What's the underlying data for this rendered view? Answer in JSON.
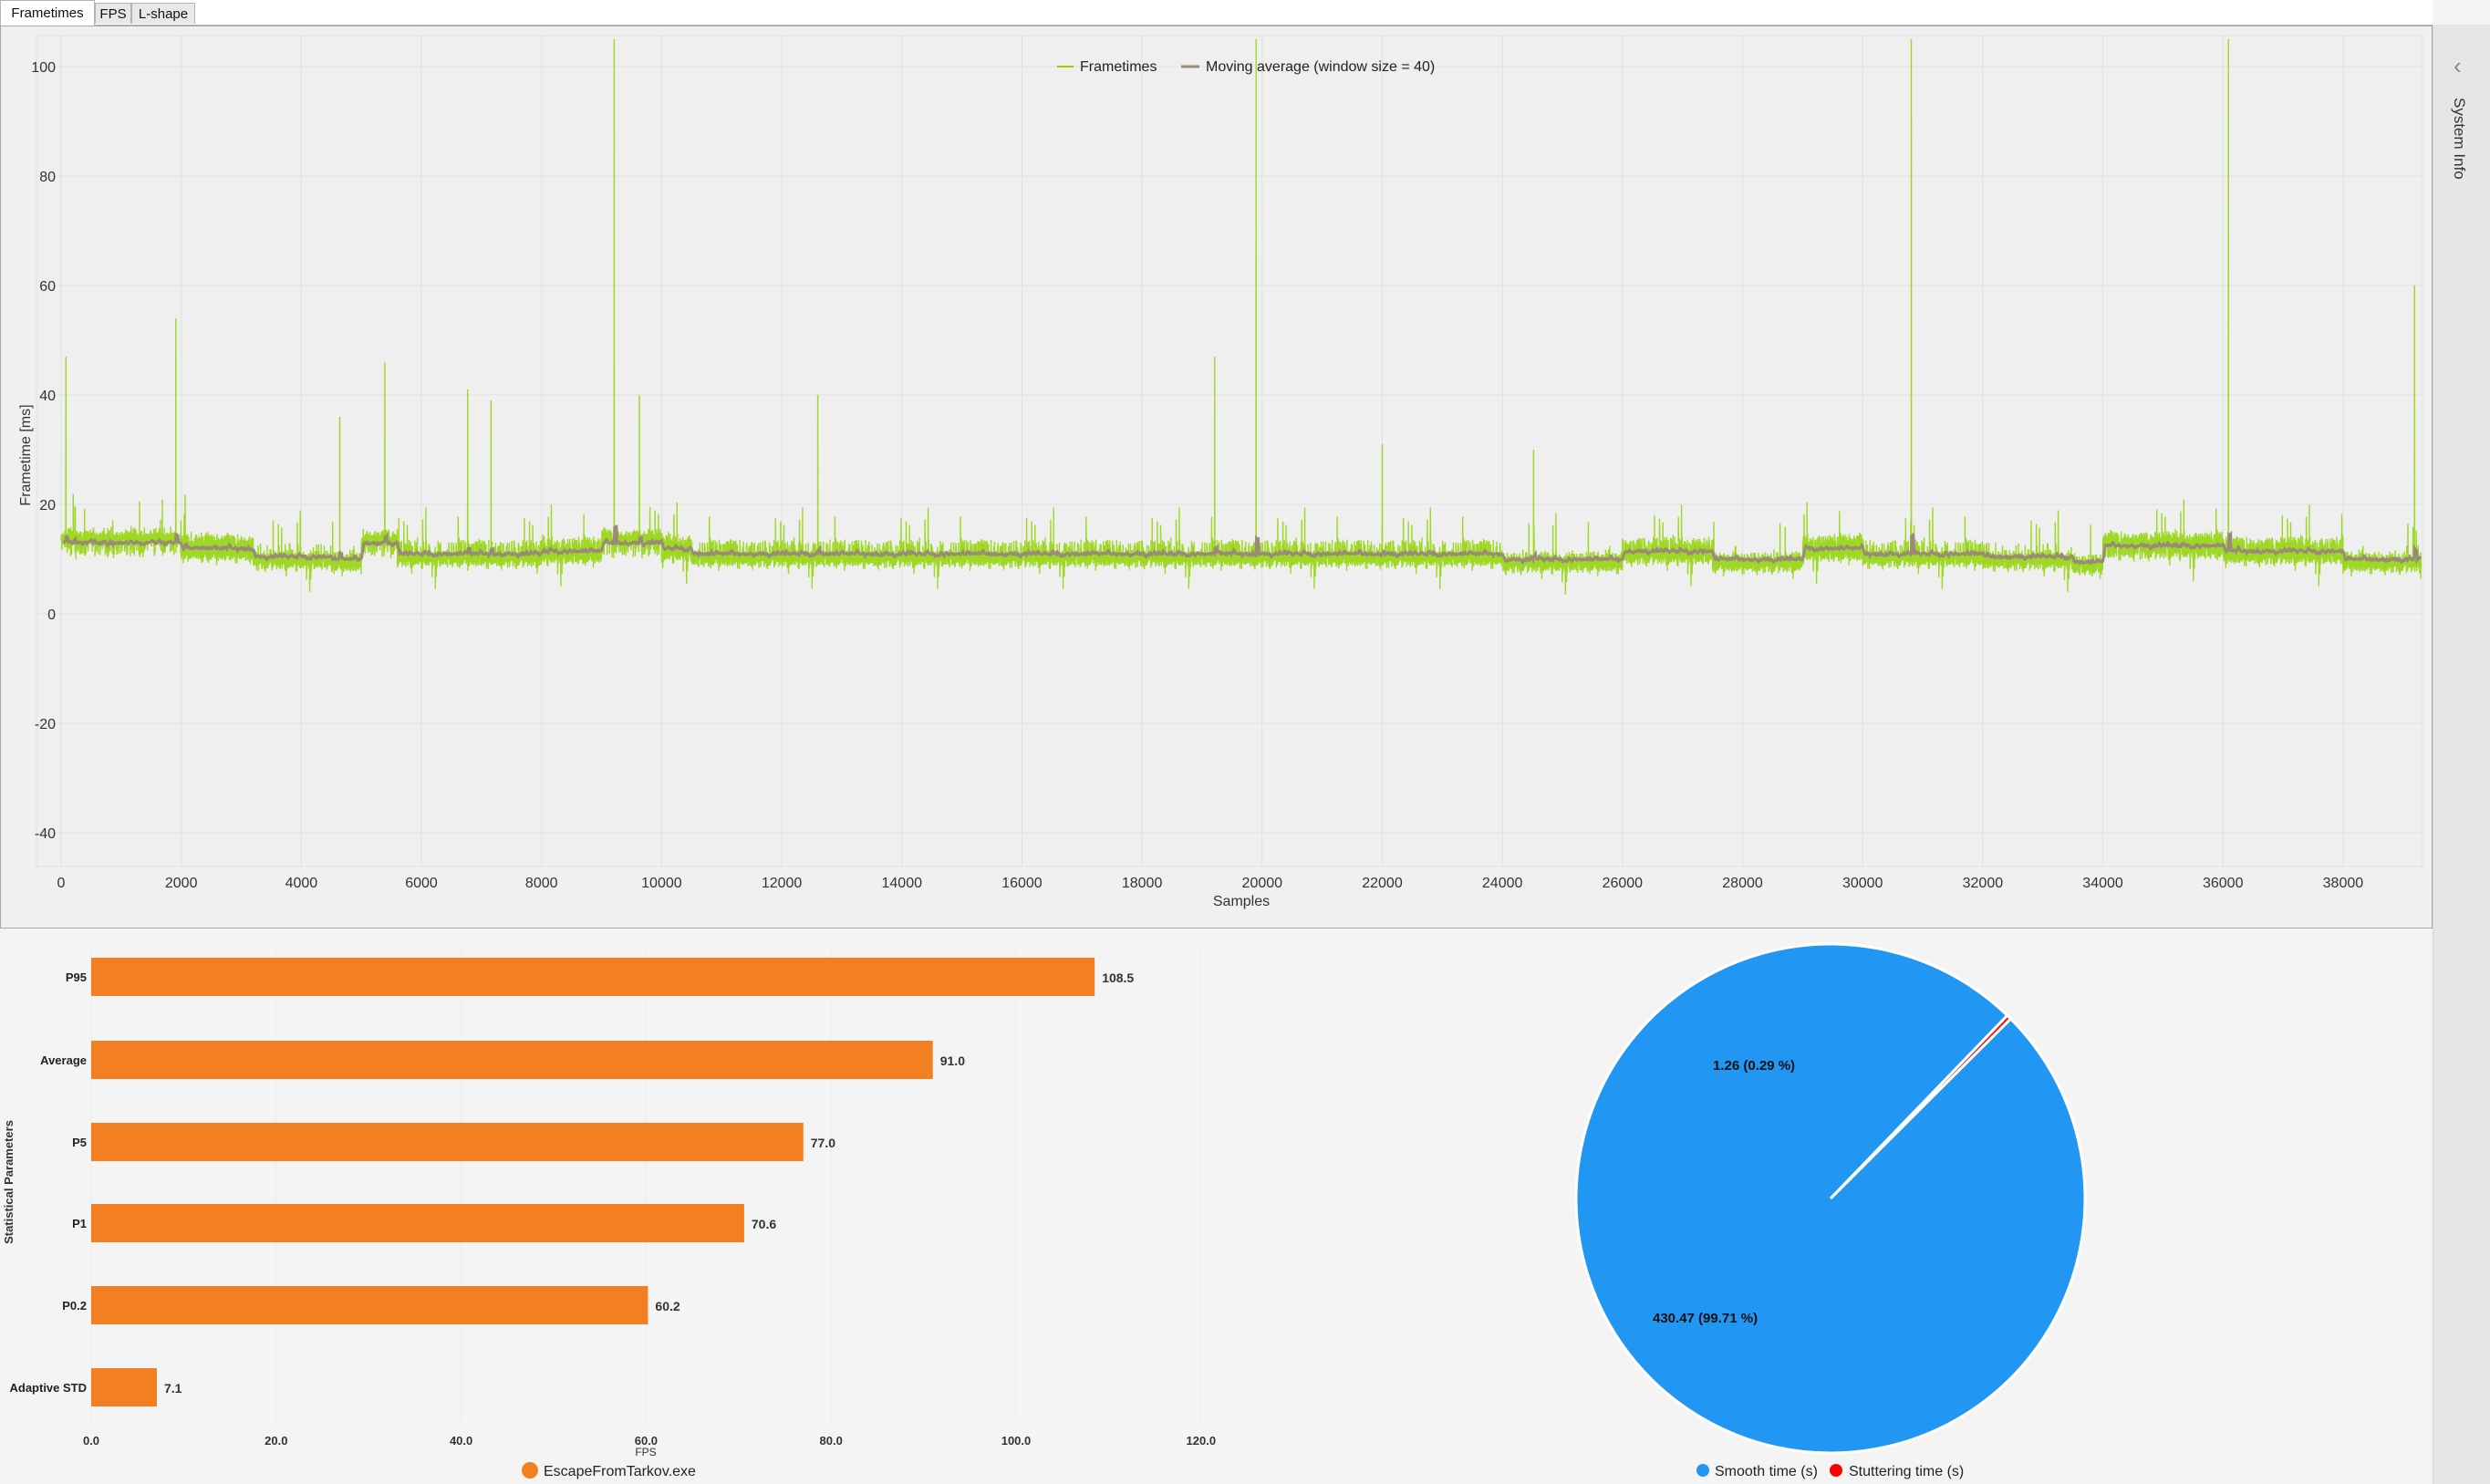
{
  "tabs": [
    {
      "label": "Frametimes",
      "active": true
    },
    {
      "label": "FPS",
      "active": false
    },
    {
      "label": "L-shape",
      "active": false
    }
  ],
  "sidebar": {
    "label": "System Info",
    "icon": "chevron-left-icon"
  },
  "colors": {
    "frametimes": "#8fd400",
    "moving_average": "#9a8a78",
    "bar": "#f27f22",
    "smooth": "#2196f3",
    "stutter": "#ff0000"
  },
  "chart_data": [
    {
      "type": "line",
      "xlabel": "Samples",
      "ylabel": "Frametime [ms]",
      "xlim": [
        0,
        39400
      ],
      "ylim": [
        -46,
        106
      ],
      "xticks": [
        "0",
        "2000",
        "4000",
        "6000",
        "8000",
        "10000",
        "12000",
        "14000",
        "16000",
        "18000",
        "20000",
        "22000",
        "24000",
        "26000",
        "28000",
        "30000",
        "32000",
        "34000",
        "36000",
        "38000"
      ],
      "yticks": [
        "100",
        "80",
        "60",
        "40",
        "20",
        "0",
        "-20",
        "-40"
      ],
      "grid": true,
      "legend_position": "top-center",
      "series": [
        {
          "name": "Frametimes",
          "baseline_segments": [
            [
              0,
              2000,
              13
            ],
            [
              2000,
              3200,
              12
            ],
            [
              3200,
              4500,
              10.5
            ],
            [
              4500,
              5000,
              10
            ],
            [
              5000,
              5600,
              13
            ],
            [
              5600,
              8000,
              11
            ],
            [
              8000,
              9000,
              11.5
            ],
            [
              9000,
              10000,
              13
            ],
            [
              10000,
              10500,
              12
            ],
            [
              10500,
              24000,
              11
            ],
            [
              24000,
              26000,
              10
            ],
            [
              26000,
              27500,
              11.5
            ],
            [
              27500,
              29000,
              10
            ],
            [
              29000,
              30000,
              12
            ],
            [
              30000,
              32000,
              11
            ],
            [
              32000,
              33500,
              10.5
            ],
            [
              33500,
              34000,
              9.5
            ],
            [
              34000,
              36000,
              12.5
            ],
            [
              36000,
              38000,
              11.5
            ],
            [
              38000,
              39300,
              10
            ]
          ],
          "spikes": [
            [
              80,
              47
            ],
            [
              1910,
              54
            ],
            [
              4640,
              36
            ],
            [
              5390,
              46
            ],
            [
              6770,
              41
            ],
            [
              7160,
              39
            ],
            [
              9210,
              105
            ],
            [
              9630,
              40
            ],
            [
              12600,
              40
            ],
            [
              19210,
              47
            ],
            [
              19900,
              105
            ],
            [
              22000,
              31
            ],
            [
              24520,
              30
            ],
            [
              30810,
              105
            ],
            [
              36090,
              105
            ],
            [
              39190,
              60
            ]
          ]
        },
        {
          "name": "Moving average (window size = 40)",
          "window": 40
        }
      ]
    },
    {
      "type": "bar",
      "orientation": "horizontal",
      "ylabel": "Statistical Parameters",
      "xlabel": "FPS",
      "categories": [
        "P95",
        "Average",
        "P5",
        "P1",
        "P0.2",
        "Adaptive STD"
      ],
      "values": [
        108.5,
        91.0,
        77.0,
        70.6,
        60.2,
        7.1
      ],
      "value_labels": [
        "108.5",
        "91.0",
        "77.0",
        "70.6",
        "60.2",
        "7.1"
      ],
      "xticks": [
        "0.0",
        "20.0",
        "40.0",
        "60.0",
        "80.0",
        "100.0",
        "120.0"
      ],
      "xlim": [
        0,
        120
      ],
      "series": [
        {
          "name": "EscapeFromTarkov.exe"
        }
      ]
    },
    {
      "type": "pie",
      "slices": [
        {
          "name": "Smooth time (s)",
          "value": 430.47,
          "label": "430.47 (99.71 %)"
        },
        {
          "name": "Stuttering time (s)",
          "value": 1.26,
          "label": "1.26 (0.29 %)"
        }
      ],
      "legend_position": "bottom"
    }
  ]
}
